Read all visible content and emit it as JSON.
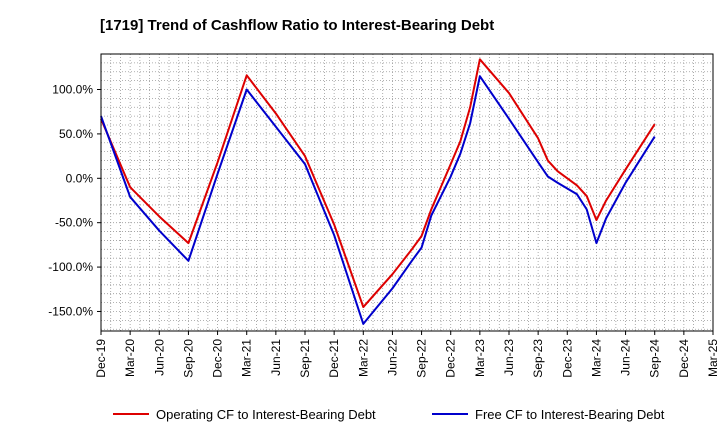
{
  "chart_data": {
    "type": "line",
    "title": "[1719]  Trend of Cashflow Ratio to Interest-Bearing Debt",
    "xlabel": "",
    "ylabel": "",
    "x_tick_labels": [
      "Dec-19",
      "Mar-20",
      "Jun-20",
      "Sep-20",
      "Dec-20",
      "Mar-21",
      "Jun-21",
      "Sep-21",
      "Dec-21",
      "Mar-22",
      "Jun-22",
      "Sep-22",
      "Dec-22",
      "Mar-23",
      "Jun-23",
      "Sep-23",
      "Dec-23",
      "Mar-24",
      "Jun-24",
      "Sep-24",
      "Dec-24",
      "Mar-25"
    ],
    "y_tick_labels": [
      "-150.0%",
      "-100.0%",
      "-50.0%",
      "0.0%",
      "50.0%",
      "100.0%"
    ],
    "y_ticks": [
      -150,
      -100,
      -50,
      0,
      50,
      100
    ],
    "ylim": [
      -172,
      140
    ],
    "grid": true,
    "legend_position": "bottom",
    "series": [
      {
        "name": "Operating CF to Interest-Bearing Debt",
        "color": "#dd0000",
        "points": [
          [
            "Dec-19",
            67
          ],
          [
            "Mar-20",
            -10
          ],
          [
            "Jun-20",
            -43
          ],
          [
            "Sep-20",
            -73
          ],
          [
            "Dec-20",
            18
          ],
          [
            "Mar-21",
            116
          ],
          [
            "Jun-21",
            73
          ],
          [
            "Sep-21",
            25
          ],
          [
            "Dec-21",
            -52
          ],
          [
            "Mar-22",
            -145
          ],
          [
            "Jun-22",
            -108
          ],
          [
            "Aug-22",
            -80
          ],
          [
            "Sep-22",
            -65
          ],
          [
            "Oct-22",
            -35
          ],
          [
            "Dec-22",
            16
          ],
          [
            "Jan-23",
            42
          ],
          [
            "Feb-23",
            80
          ],
          [
            "Mar-23",
            134
          ],
          [
            "Jun-23",
            96
          ],
          [
            "Sep-23",
            45
          ],
          [
            "Oct-23",
            20
          ],
          [
            "Nov-23",
            8
          ],
          [
            "Jan-24",
            -8
          ],
          [
            "Feb-24",
            -20
          ],
          [
            "Mar-24",
            -47
          ],
          [
            "Apr-24",
            -25
          ],
          [
            "Jun-24",
            10
          ],
          [
            "Sep-24",
            61
          ]
        ]
      },
      {
        "name": "Free CF to Interest-Bearing Debt",
        "color": "#0000cc",
        "points": [
          [
            "Dec-19",
            70
          ],
          [
            "Mar-20",
            -21
          ],
          [
            "Jun-20",
            -59
          ],
          [
            "Sep-20",
            -93
          ],
          [
            "Dec-20",
            5
          ],
          [
            "Mar-21",
            100
          ],
          [
            "Jun-21",
            58
          ],
          [
            "Sep-21",
            16
          ],
          [
            "Dec-21",
            -64
          ],
          [
            "Mar-22",
            -164
          ],
          [
            "Jun-22",
            -124
          ],
          [
            "Aug-22",
            -93
          ],
          [
            "Sep-22",
            -78
          ],
          [
            "Oct-22",
            -42
          ],
          [
            "Dec-22",
            2
          ],
          [
            "Jan-23",
            28
          ],
          [
            "Feb-23",
            62
          ],
          [
            "Mar-23",
            115
          ],
          [
            "Jun-23",
            67
          ],
          [
            "Sep-23",
            18
          ],
          [
            "Oct-23",
            2
          ],
          [
            "Nov-23",
            -5
          ],
          [
            "Jan-24",
            -18
          ],
          [
            "Feb-24",
            -35
          ],
          [
            "Mar-24",
            -73
          ],
          [
            "Apr-24",
            -45
          ],
          [
            "Jun-24",
            -5
          ],
          [
            "Sep-24",
            47
          ]
        ]
      }
    ]
  }
}
